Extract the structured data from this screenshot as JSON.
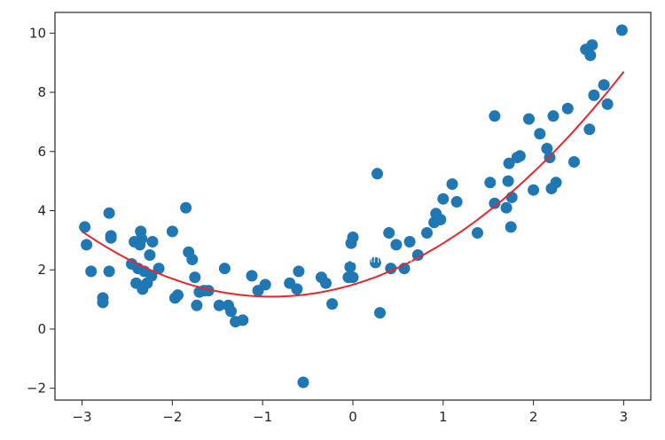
{
  "chart_data": {
    "type": "scatter",
    "xlim": [
      -3.3,
      3.3
    ],
    "ylim": [
      -2.4,
      10.7
    ],
    "xticks": [
      -3,
      -2,
      -1,
      0,
      1,
      2,
      3
    ],
    "yticks": [
      -2,
      0,
      2,
      4,
      6,
      8,
      10
    ],
    "xtick_labels": [
      "−3",
      "−2",
      "−1",
      "0",
      "1",
      "2",
      "3"
    ],
    "ytick_labels": [
      "−2",
      "0",
      "2",
      "4",
      "6",
      "8",
      "10"
    ],
    "grid": false,
    "colors": {
      "points": "#1f77b4",
      "fit_line": "#e8262d",
      "axes": "#262626"
    },
    "watermark": "www.devtalking.com",
    "series": [
      {
        "type": "scatter",
        "points": [
          [
            -2.97,
            3.45
          ],
          [
            -2.95,
            2.85
          ],
          [
            -2.9,
            1.95
          ],
          [
            -2.77,
            1.05
          ],
          [
            -2.77,
            0.9
          ],
          [
            -2.7,
            3.92
          ],
          [
            -2.7,
            1.95
          ],
          [
            -2.68,
            3.15
          ],
          [
            -2.68,
            3.08
          ],
          [
            -2.45,
            2.2
          ],
          [
            -2.42,
            2.95
          ],
          [
            -2.4,
            1.55
          ],
          [
            -2.38,
            2.05
          ],
          [
            -2.36,
            2.85
          ],
          [
            -2.35,
            3.3
          ],
          [
            -2.34,
            3.05
          ],
          [
            -2.33,
            1.35
          ],
          [
            -2.31,
            1.95
          ],
          [
            -2.28,
            1.55
          ],
          [
            -2.25,
            2.5
          ],
          [
            -2.23,
            1.8
          ],
          [
            -2.22,
            2.95
          ],
          [
            -2.15,
            2.05
          ],
          [
            -2.0,
            3.3
          ],
          [
            -1.97,
            1.05
          ],
          [
            -1.94,
            1.15
          ],
          [
            -1.85,
            4.1
          ],
          [
            -1.82,
            2.6
          ],
          [
            -1.78,
            2.35
          ],
          [
            -1.75,
            1.75
          ],
          [
            -1.73,
            0.8
          ],
          [
            -1.7,
            1.25
          ],
          [
            -1.65,
            1.3
          ],
          [
            -1.6,
            1.3
          ],
          [
            -1.48,
            0.8
          ],
          [
            -1.42,
            2.05
          ],
          [
            -1.38,
            0.8
          ],
          [
            -1.35,
            0.6
          ],
          [
            -1.3,
            0.25
          ],
          [
            -1.22,
            0.3
          ],
          [
            -1.12,
            1.8
          ],
          [
            -1.05,
            1.3
          ],
          [
            -0.97,
            1.5
          ],
          [
            -0.7,
            1.55
          ],
          [
            -0.62,
            1.35
          ],
          [
            -0.6,
            1.95
          ],
          [
            -0.55,
            -1.8
          ],
          [
            -0.35,
            1.75
          ],
          [
            -0.3,
            1.55
          ],
          [
            -0.23,
            0.85
          ],
          [
            -0.05,
            1.75
          ],
          [
            -0.03,
            2.1
          ],
          [
            -0.02,
            2.9
          ],
          [
            0.0,
            3.1
          ],
          [
            0.0,
            1.75
          ],
          [
            0.25,
            2.25
          ],
          [
            0.27,
            5.25
          ],
          [
            0.3,
            0.55
          ],
          [
            0.4,
            3.25
          ],
          [
            0.42,
            2.05
          ],
          [
            0.48,
            2.85
          ],
          [
            0.57,
            2.05
          ],
          [
            0.63,
            2.95
          ],
          [
            0.72,
            2.5
          ],
          [
            0.82,
            3.25
          ],
          [
            0.9,
            3.6
          ],
          [
            0.92,
            3.9
          ],
          [
            0.97,
            3.7
          ],
          [
            1.0,
            4.4
          ],
          [
            1.1,
            4.9
          ],
          [
            1.15,
            4.3
          ],
          [
            1.38,
            3.25
          ],
          [
            1.52,
            4.95
          ],
          [
            1.57,
            7.2
          ],
          [
            1.57,
            4.25
          ],
          [
            1.7,
            4.1
          ],
          [
            1.72,
            5.0
          ],
          [
            1.73,
            5.6
          ],
          [
            1.75,
            3.45
          ],
          [
            1.76,
            4.45
          ],
          [
            1.82,
            5.8
          ],
          [
            1.85,
            5.85
          ],
          [
            1.95,
            7.1
          ],
          [
            2.0,
            4.7
          ],
          [
            2.07,
            6.6
          ],
          [
            2.15,
            6.1
          ],
          [
            2.18,
            5.8
          ],
          [
            2.2,
            4.75
          ],
          [
            2.22,
            7.2
          ],
          [
            2.25,
            4.95
          ],
          [
            2.38,
            7.45
          ],
          [
            2.45,
            5.65
          ],
          [
            2.58,
            9.45
          ],
          [
            2.62,
            6.75
          ],
          [
            2.63,
            9.25
          ],
          [
            2.65,
            9.6
          ],
          [
            2.67,
            7.9
          ],
          [
            2.78,
            8.25
          ],
          [
            2.82,
            7.6
          ],
          [
            2.98,
            10.1
          ]
        ]
      },
      {
        "type": "line",
        "x_range": [
          -3,
          3
        ],
        "polynomial_coefficients": [
          1.5,
          0.9,
          0.5
        ]
      }
    ]
  }
}
